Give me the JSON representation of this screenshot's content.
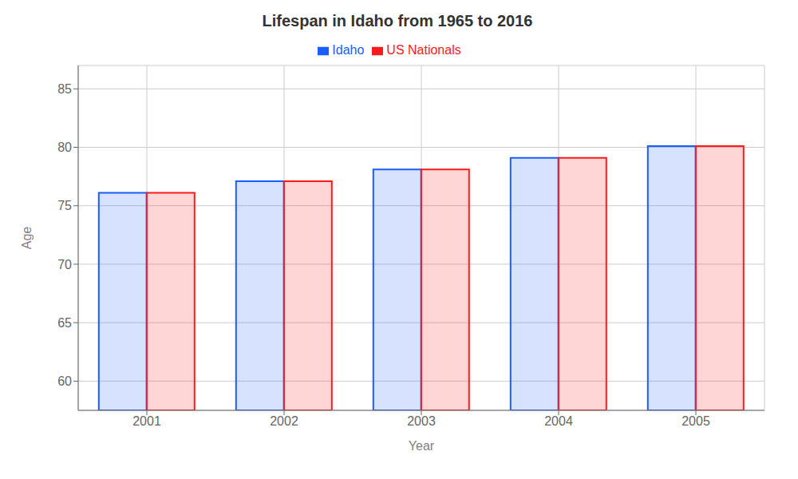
{
  "chart_data": {
    "type": "bar",
    "title": "Lifespan in Idaho from 1965 to 2016",
    "xlabel": "Year",
    "ylabel": "Age",
    "categories": [
      "2001",
      "2002",
      "2003",
      "2004",
      "2005"
    ],
    "series": [
      {
        "name": "Idaho",
        "color": "#1a5dff",
        "values": [
          76.1,
          77.1,
          78.1,
          79.1,
          80.1
        ]
      },
      {
        "name": "US Nationals",
        "color": "#ff1a1a",
        "values": [
          76.1,
          77.1,
          78.1,
          79.1,
          80.1
        ]
      }
    ],
    "ylim": [
      57.5,
      87
    ],
    "yticks": [
      60,
      65,
      70,
      75,
      80,
      85
    ],
    "grid": true,
    "legend": "top"
  }
}
